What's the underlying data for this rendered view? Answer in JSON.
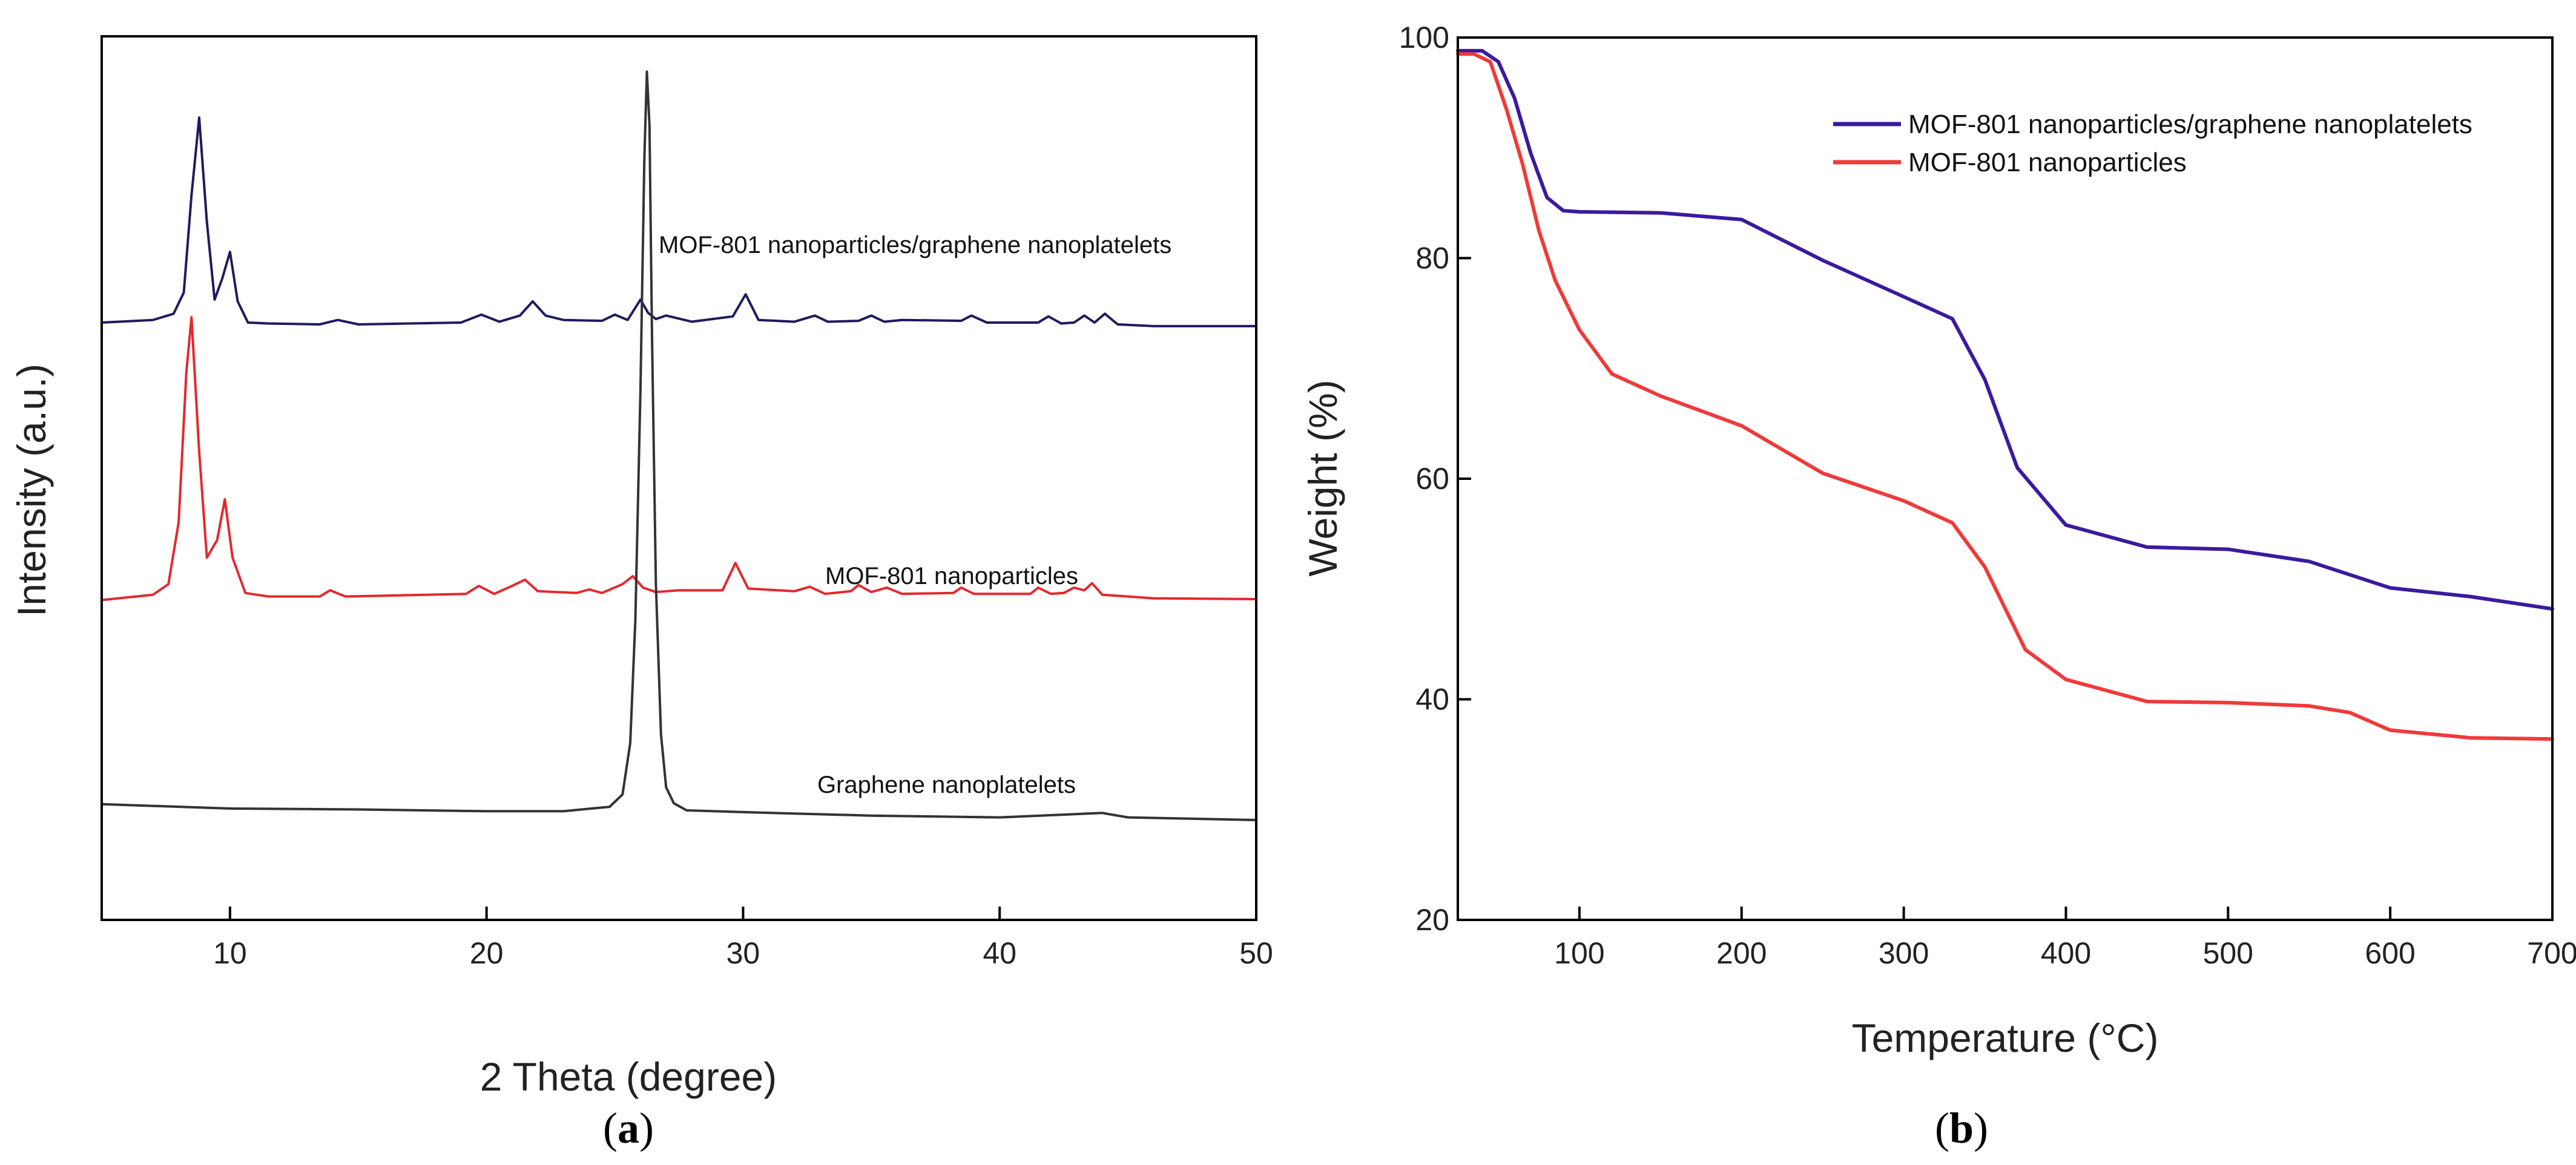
{
  "chart_data": [
    {
      "type": "line",
      "panel_label_open": "(",
      "panel_label_letter": "a",
      "panel_label_close": ")",
      "title": "",
      "xlabel": "2 Theta (degree)",
      "ylabel": "Intensity (a.u.)",
      "xlim": [
        5,
        50
      ],
      "ylim": [
        0,
        100
      ],
      "xticks": [
        10,
        20,
        30,
        40,
        50
      ],
      "y_tick_labels_shown": false,
      "grid": false,
      "annotations": [
        "MOF-801 nanoparticles/graphene nanoplatelets",
        "MOF-801 nanoparticles",
        "Graphene nanoplatelets"
      ],
      "series": [
        {
          "color": "#1f1b5e",
          "x": [
            5,
            7,
            7.8,
            8.2,
            8.5,
            8.8,
            9.1,
            9.4,
            9.7,
            10.0,
            10.3,
            10.7,
            11.5,
            13.5,
            14.2,
            15,
            19,
            19.8,
            20.5,
            21.3,
            21.8,
            22.3,
            23,
            24.5,
            25,
            25.5,
            26,
            26.3,
            26.6,
            27,
            28,
            29.6,
            30.1,
            30.6,
            32,
            32.8,
            33.3,
            34.5,
            35,
            35.5,
            36.2,
            38.5,
            38.9,
            39.5,
            41.5,
            41.9,
            42.4,
            42.9,
            43.3,
            43.7,
            44.1,
            44.6,
            46,
            50
          ],
          "y": [
            67.6,
            67.9,
            68.6,
            71,
            82,
            90.8,
            79,
            70.2,
            72.6,
            75.6,
            70,
            67.6,
            67.5,
            67.4,
            67.9,
            67.4,
            67.6,
            68.5,
            67.7,
            68.4,
            70,
            68.4,
            67.9,
            67.8,
            68.5,
            67.9,
            70.2,
            68.7,
            68,
            68.4,
            67.7,
            68.3,
            70.8,
            67.9,
            67.7,
            68.4,
            67.7,
            67.8,
            68.4,
            67.7,
            67.9,
            67.8,
            68.4,
            67.6,
            67.6,
            68.3,
            67.5,
            67.6,
            68.4,
            67.6,
            68.6,
            67.4,
            67.2,
            67.2
          ]
        },
        {
          "color": "#e3292e",
          "x": [
            5,
            7,
            7.6,
            8.0,
            8.3,
            8.5,
            8.8,
            9.1,
            9.5,
            9.8,
            10.1,
            10.6,
            11.5,
            13.5,
            13.9,
            14.5,
            19.2,
            19.7,
            20.3,
            21,
            21.5,
            22,
            23.5,
            24,
            24.5,
            25.3,
            25.7,
            26.1,
            26.6,
            27.5,
            29.2,
            29.7,
            30.2,
            32,
            32.6,
            33.2,
            34.2,
            34.5,
            35,
            35.6,
            36.2,
            38.2,
            38.5,
            39,
            41.2,
            41.5,
            42,
            42.5,
            42.9,
            43.3,
            43.6,
            44,
            45,
            46,
            50
          ],
          "y": [
            36.2,
            36.8,
            38,
            45,
            62,
            68.2,
            53,
            41,
            43,
            47.6,
            41,
            37,
            36.6,
            36.6,
            37.3,
            36.6,
            36.9,
            37.8,
            36.9,
            37.8,
            38.5,
            37.2,
            37,
            37.4,
            37,
            38,
            38.9,
            37.6,
            37.1,
            37.3,
            37.3,
            40.4,
            37.5,
            37.2,
            37.7,
            36.9,
            37.2,
            37.9,
            37.1,
            37.6,
            36.9,
            37,
            37.6,
            36.9,
            36.9,
            37.6,
            36.9,
            37,
            37.6,
            37.3,
            38.1,
            36.8,
            36.6,
            36.4,
            36.3
          ]
        },
        {
          "color": "#333333",
          "x": [
            5,
            10,
            15,
            20,
            23,
            24.8,
            25.3,
            25.6,
            25.8,
            26.0,
            26.15,
            26.25,
            26.35,
            26.45,
            26.6,
            26.8,
            27.0,
            27.3,
            27.8,
            30,
            35,
            40,
            44,
            45,
            50
          ],
          "y": [
            13.1,
            12.6,
            12.5,
            12.3,
            12.3,
            12.8,
            14.2,
            20,
            34,
            60,
            86,
            96,
            90,
            66,
            38,
            21,
            15,
            13.2,
            12.4,
            12.2,
            11.8,
            11.6,
            12.1,
            11.6,
            11.3
          ]
        }
      ]
    },
    {
      "type": "line",
      "panel_label_open": "(",
      "panel_label_letter": "b",
      "panel_label_close": ")",
      "title": "",
      "xlabel": "Temperature (°C)",
      "ylabel": "Weight (%)",
      "xlim": [
        25,
        700
      ],
      "ylim": [
        20,
        100
      ],
      "xticks": [
        100,
        200,
        300,
        400,
        500,
        600,
        700
      ],
      "yticks": [
        20,
        40,
        60,
        80,
        100
      ],
      "grid": false,
      "legend": "top-right",
      "series": [
        {
          "name": "MOF-801 nanoparticles/graphene nanoplatelets",
          "color": "#3b1a9e",
          "x": [
            25,
            40,
            50,
            60,
            70,
            80,
            90,
            100,
            150,
            200,
            250,
            300,
            330,
            350,
            370,
            400,
            450,
            500,
            550,
            600,
            650,
            700
          ],
          "y": [
            98.8,
            98.8,
            97.8,
            94.5,
            89.5,
            85.5,
            84.3,
            84.2,
            84.1,
            83.5,
            79.8,
            76.5,
            74.5,
            69,
            61,
            55.8,
            53.8,
            53.6,
            52.5,
            50.1,
            49.3,
            48.2
          ]
        },
        {
          "name": "MOF-801 nanoparticles",
          "color": "#f03a3a",
          "x": [
            25,
            35,
            45,
            55,
            65,
            75,
            85,
            100,
            120,
            150,
            200,
            250,
            300,
            330,
            350,
            375,
            400,
            450,
            500,
            550,
            575,
            600,
            650,
            700
          ],
          "y": [
            98.5,
            98.5,
            97.8,
            93.5,
            88.5,
            82.5,
            78,
            73.5,
            69.5,
            67.5,
            64.8,
            60.5,
            58,
            56,
            52,
            44.5,
            41.8,
            39.8,
            39.7,
            39.4,
            38.8,
            37.2,
            36.5,
            36.4
          ]
        }
      ]
    }
  ]
}
